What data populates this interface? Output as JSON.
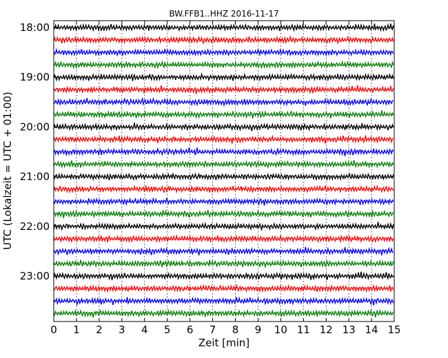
{
  "chart_data": {
    "type": "line",
    "title": "BW.FFB1..HHZ 2016-11-17",
    "xlabel": "Zeit  [min]",
    "ylabel": "UTC (Lokalzeit = UTC + 01:00)",
    "xlim": [
      0,
      15
    ],
    "x_ticks": [
      "0",
      "1",
      "2",
      "3",
      "4",
      "5",
      "6",
      "7",
      "8",
      "9",
      "10",
      "11",
      "12",
      "13",
      "14",
      "15"
    ],
    "y_tick_labels": [
      "18:00",
      "19:00",
      "20:00",
      "21:00",
      "22:00",
      "23:00"
    ],
    "grid": "vertical dotted",
    "trace_colors": [
      "#000000",
      "#ff0000",
      "#0000ff",
      "#007f00"
    ],
    "traces_per_hour": 4,
    "minutes_per_trace": 15,
    "trace_start_times": [
      "18:00",
      "18:15",
      "18:30",
      "18:45",
      "19:00",
      "19:15",
      "19:30",
      "19:45",
      "20:00",
      "20:15",
      "20:30",
      "20:45",
      "21:00",
      "21:15",
      "21:30",
      "21:45",
      "22:00",
      "22:15",
      "22:30",
      "22:45",
      "23:00",
      "23:15",
      "23:30",
      "23:45"
    ]
  }
}
